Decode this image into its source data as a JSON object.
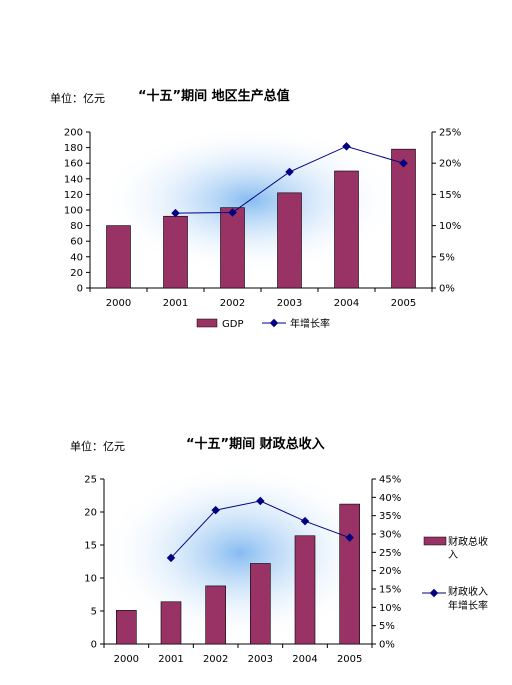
{
  "chart_data": [
    {
      "type": "bar",
      "unit_label": "单位：亿元",
      "title": "“十五”期间 地区生产总值",
      "categories": [
        "2000",
        "2001",
        "2002",
        "2003",
        "2004",
        "2005"
      ],
      "series": [
        {
          "name": "GDP",
          "type": "bar",
          "axis": "left",
          "values": [
            80,
            92,
            103,
            122,
            150,
            178
          ]
        },
        {
          "name": "年增长率",
          "type": "line",
          "axis": "right",
          "values": [
            null,
            12.0,
            12.1,
            18.6,
            22.7,
            20.0
          ]
        }
      ],
      "y_left": {
        "ylim": [
          0,
          200
        ],
        "ticks": [
          "200",
          "180",
          "160",
          "140",
          "120",
          "100",
          "80",
          "60",
          "40",
          "20",
          "0"
        ]
      },
      "y_right": {
        "ylim": [
          0,
          25
        ],
        "ticks": [
          "25%",
          "20%",
          "15%",
          "10%",
          "5%",
          "0%"
        ]
      },
      "grid": false,
      "legend_position": "bottom"
    },
    {
      "type": "bar",
      "unit_label": "单位：亿元",
      "title": "“十五”期间 财政总收入",
      "categories": [
        "2000",
        "2001",
        "2002",
        "2003",
        "2004",
        "2005"
      ],
      "series": [
        {
          "name": "财政总收入",
          "type": "bar",
          "axis": "left",
          "values": [
            5.1,
            6.4,
            8.8,
            12.2,
            16.4,
            21.2
          ]
        },
        {
          "name": "财政收入年增长率",
          "type": "line",
          "axis": "right",
          "values": [
            null,
            23.5,
            36.5,
            39.0,
            33.5,
            29.0
          ]
        }
      ],
      "legend_labels": [
        [
          "财政总收",
          "入"
        ],
        [
          "财政收入",
          "年增长率"
        ]
      ],
      "y_left": {
        "ylim": [
          0,
          25
        ],
        "ticks": [
          "25",
          "20",
          "15",
          "10",
          "5",
          "0"
        ]
      },
      "y_right": {
        "ylim": [
          0,
          45
        ],
        "ticks": [
          "45%",
          "40%",
          "35%",
          "30%",
          "25%",
          "20%",
          "15%",
          "10%",
          "5%",
          "0%"
        ]
      },
      "grid": false,
      "legend_position": "right"
    }
  ],
  "colors": {
    "bar": "#993366",
    "line": "#000080",
    "glow": "#7fb8f0"
  }
}
